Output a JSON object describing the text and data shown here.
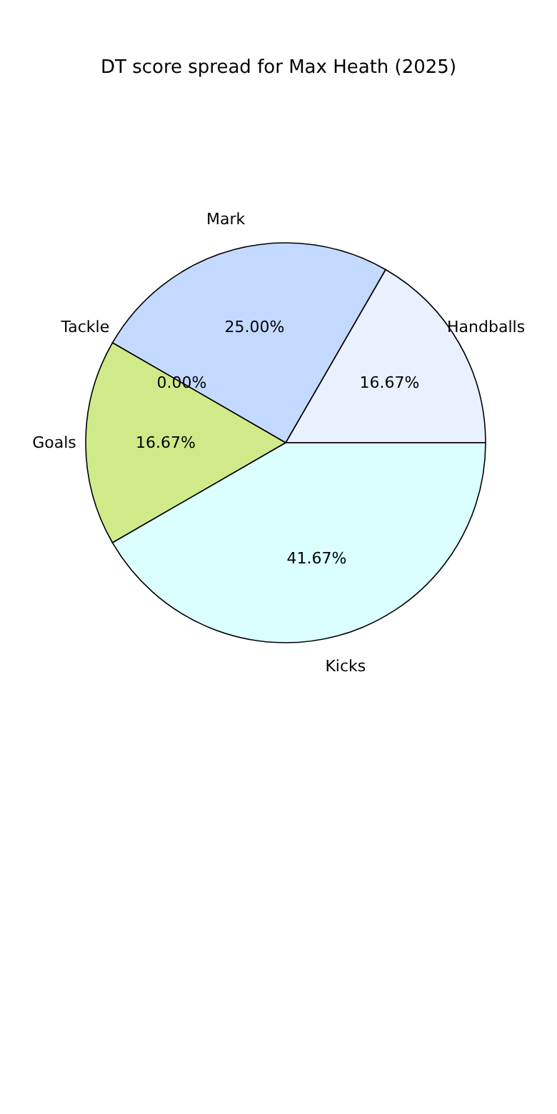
{
  "chart_data": {
    "type": "pie",
    "title": "DT score spread for Max Heath (2025)",
    "categories": [
      "Handballs",
      "Mark",
      "Tackle",
      "Goals",
      "Kicks"
    ],
    "values": [
      16.67,
      25,
      0,
      16.67,
      41.67
    ],
    "colors": [
      "#e9f0ff",
      "#c4d9ff",
      "#f4c6c6",
      "#d0ea8a",
      "#dbffff"
    ],
    "value_labels": [
      "16.67%",
      "25.00%",
      "0.00%",
      "16.67%",
      "41.67%"
    ]
  }
}
